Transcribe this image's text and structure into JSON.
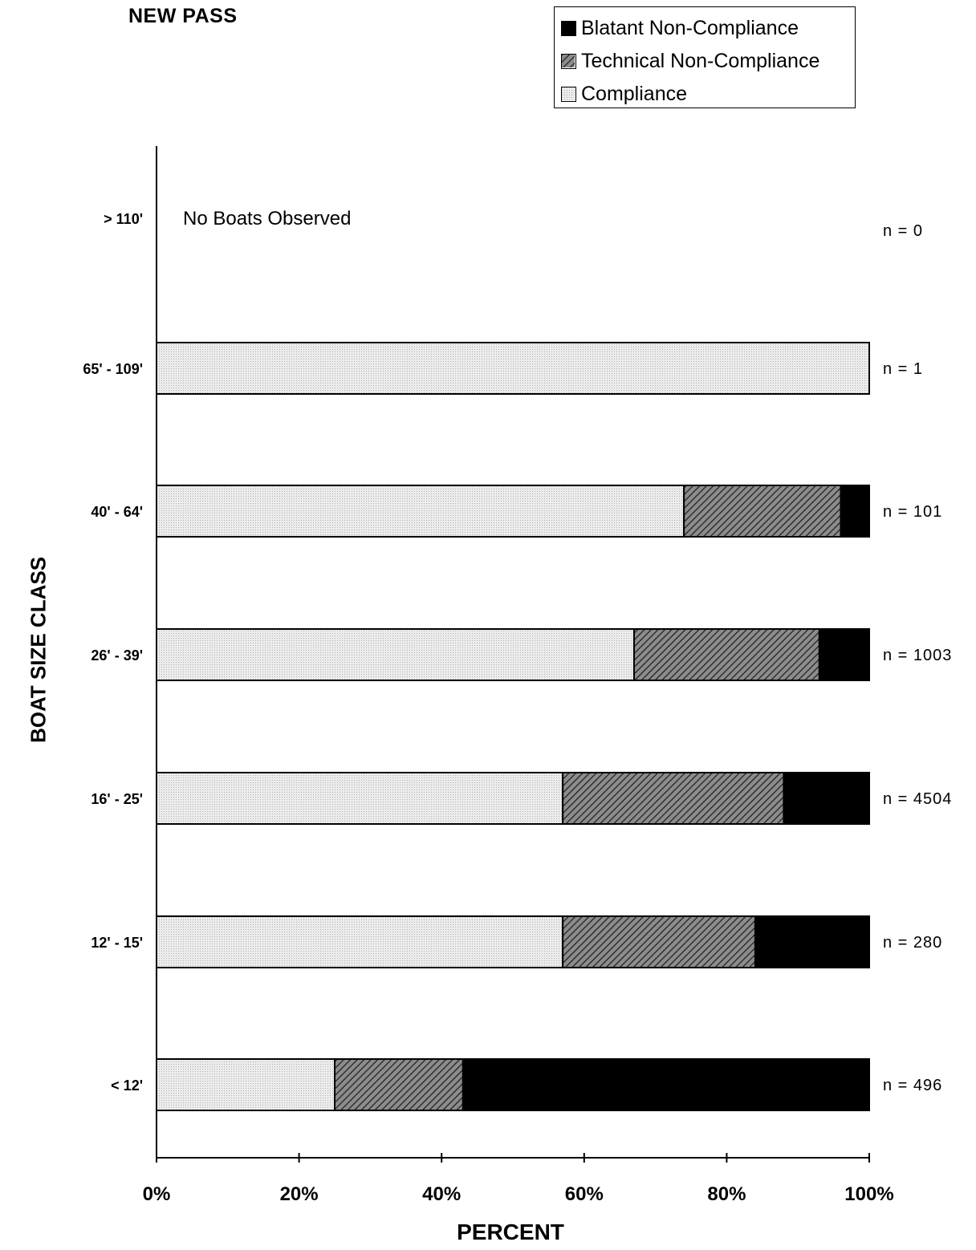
{
  "title": "NEW PASS",
  "legend": {
    "items": [
      {
        "label": "Blatant Non-Compliance",
        "key": "blatant"
      },
      {
        "label": "Technical Non-Compliance",
        "key": "technical"
      },
      {
        "label": "Compliance",
        "key": "compliance"
      }
    ]
  },
  "colors": {
    "compliance": "#e2e2e2",
    "technical": "#6a6a6a",
    "blatant": "#000000"
  },
  "chart_data": {
    "type": "bar",
    "orientation": "horizontal",
    "stacked": true,
    "xlabel": "PERCENT",
    "ylabel": "BOAT SIZE CLASS",
    "xlim": [
      0,
      100
    ],
    "xticks": [
      "0%",
      "20%",
      "40%",
      "60%",
      "80%",
      "100%"
    ],
    "categories": [
      "> 110'",
      "65' - 109'",
      "40' - 64'",
      "26' - 39'",
      "16' - 25'",
      "12' - 15'",
      "< 12'"
    ],
    "n_labels": [
      "n = 0",
      "n = 1",
      "n = 101",
      "n = 1003",
      "n = 4504",
      "n = 280",
      "n = 496"
    ],
    "series": [
      {
        "name": "Compliance",
        "values": [
          0,
          100,
          74,
          67,
          57,
          57,
          25
        ]
      },
      {
        "name": "Technical Non-Compliance",
        "values": [
          0,
          0,
          22,
          26,
          31,
          27,
          18
        ]
      },
      {
        "name": "Blatant Non-Compliance",
        "values": [
          0,
          0,
          4,
          7,
          12,
          16,
          57
        ]
      }
    ],
    "annotations": [
      {
        "category": "> 110'",
        "text": "No Boats Observed"
      }
    ],
    "grid": false,
    "legend_position": "top-right"
  }
}
